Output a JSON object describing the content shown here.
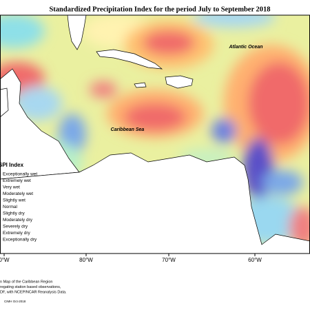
{
  "title": "Standardized Precipitation Index for the period July to September 2018",
  "labels": {
    "ocean": "Atlantic Ocean",
    "sea": "Caribbean Sea"
  },
  "longitude_labels": [
    "0°W",
    "80°W",
    "70°W",
    "60°W"
  ],
  "legend": {
    "title": "SPI Index",
    "items": [
      "Exceptionally wet",
      "Extremely wet",
      "Very wet",
      "Moderately wet",
      "Slightly wet",
      "Normal",
      "Slightly dry",
      "Moderately dry",
      "Severely dry",
      "Extremely dry",
      "Exceptionally dry"
    ]
  },
  "footnote": [
    "n Map of the Caribbean Region",
    "regating station based observations,",
    "DF, with NCEP/NCAR Reanalysis Data."
  ],
  "credit": "CIMH Oct-2018"
}
